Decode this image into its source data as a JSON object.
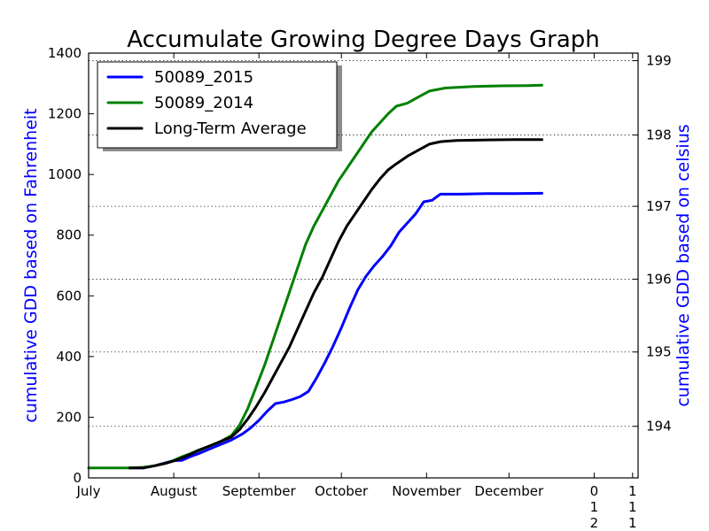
{
  "chart_data": {
    "type": "line",
    "title": "Accumulate Growing Degree Days Graph",
    "ylabel_left": "cumulative GDD based on Fahrenheit",
    "ylabel_right": "cumulative GDD based on celsius",
    "ylim_left": [
      0,
      1400
    ],
    "y_ticks_left": [
      "0",
      "200",
      "400",
      "600",
      "800",
      "1000",
      "1200",
      "1400"
    ],
    "ylim_right_tick_values": [
      194,
      195,
      196,
      197,
      198,
      199
    ],
    "y_ticks_right": [
      "194",
      "195",
      "196",
      "197",
      "198",
      "199"
    ],
    "right_tick_positions_left_units": [
      170,
      415,
      655,
      895,
      1130,
      1375
    ],
    "xlim_days": [
      0,
      200
    ],
    "x_ticks": [
      {
        "day": 0,
        "label": "July"
      },
      {
        "day": 31,
        "label": "August"
      },
      {
        "day": 62,
        "label": "September"
      },
      {
        "day": 92,
        "label": "October"
      },
      {
        "day": 123,
        "label": "November"
      },
      {
        "day": 153,
        "label": "December"
      }
    ],
    "x_overflow_labels": [
      {
        "day": 184,
        "lines": [
          "0",
          "1",
          "2"
        ]
      },
      {
        "day": 198,
        "lines": [
          "1",
          "1",
          "1"
        ]
      }
    ],
    "grid": "horizontal dotted at right-axis ticks",
    "legend_position": "top-left",
    "series": [
      {
        "name": "50089_2015",
        "color": "#0000ff",
        "points": [
          [
            15,
            33
          ],
          [
            20,
            33
          ],
          [
            24,
            40
          ],
          [
            28,
            50
          ],
          [
            31,
            57
          ],
          [
            34,
            58
          ],
          [
            37,
            70
          ],
          [
            40,
            80
          ],
          [
            44,
            95
          ],
          [
            48,
            110
          ],
          [
            52,
            125
          ],
          [
            56,
            145
          ],
          [
            59,
            165
          ],
          [
            62,
            190
          ],
          [
            65,
            220
          ],
          [
            68,
            245
          ],
          [
            71,
            250
          ],
          [
            74,
            258
          ],
          [
            77,
            268
          ],
          [
            80,
            285
          ],
          [
            83,
            330
          ],
          [
            86,
            380
          ],
          [
            89,
            435
          ],
          [
            92,
            495
          ],
          [
            95,
            560
          ],
          [
            98,
            620
          ],
          [
            101,
            665
          ],
          [
            104,
            700
          ],
          [
            107,
            730
          ],
          [
            110,
            765
          ],
          [
            113,
            810
          ],
          [
            116,
            840
          ],
          [
            119,
            870
          ],
          [
            122,
            910
          ],
          [
            125,
            915
          ],
          [
            128,
            935
          ],
          [
            135,
            935
          ],
          [
            145,
            937
          ],
          [
            155,
            937
          ],
          [
            165,
            938
          ]
        ]
      },
      {
        "name": "50089_2014",
        "color": "#008000",
        "points": [
          [
            0,
            33
          ],
          [
            10,
            33
          ],
          [
            15,
            33
          ],
          [
            20,
            35
          ],
          [
            24,
            40
          ],
          [
            28,
            48
          ],
          [
            31,
            58
          ],
          [
            34,
            70
          ],
          [
            37,
            80
          ],
          [
            40,
            92
          ],
          [
            44,
            105
          ],
          [
            48,
            120
          ],
          [
            52,
            140
          ],
          [
            55,
            175
          ],
          [
            58,
            230
          ],
          [
            61,
            300
          ],
          [
            64,
            370
          ],
          [
            67,
            450
          ],
          [
            70,
            530
          ],
          [
            73,
            610
          ],
          [
            76,
            690
          ],
          [
            79,
            770
          ],
          [
            82,
            830
          ],
          [
            85,
            880
          ],
          [
            88,
            930
          ],
          [
            91,
            980
          ],
          [
            94,
            1020
          ],
          [
            97,
            1060
          ],
          [
            100,
            1100
          ],
          [
            103,
            1140
          ],
          [
            106,
            1170
          ],
          [
            109,
            1200
          ],
          [
            112,
            1225
          ],
          [
            116,
            1235
          ],
          [
            120,
            1255
          ],
          [
            124,
            1275
          ],
          [
            130,
            1285
          ],
          [
            140,
            1290
          ],
          [
            150,
            1292
          ],
          [
            160,
            1293
          ],
          [
            165,
            1294
          ]
        ]
      },
      {
        "name": "Long-Term Average",
        "color": "#000000",
        "points": [
          [
            15,
            33
          ],
          [
            20,
            33
          ],
          [
            24,
            40
          ],
          [
            28,
            48
          ],
          [
            31,
            56
          ],
          [
            34,
            66
          ],
          [
            37,
            78
          ],
          [
            40,
            90
          ],
          [
            44,
            105
          ],
          [
            48,
            120
          ],
          [
            52,
            135
          ],
          [
            55,
            160
          ],
          [
            58,
            195
          ],
          [
            61,
            235
          ],
          [
            64,
            280
          ],
          [
            67,
            330
          ],
          [
            70,
            380
          ],
          [
            73,
            430
          ],
          [
            76,
            490
          ],
          [
            79,
            550
          ],
          [
            82,
            610
          ],
          [
            85,
            660
          ],
          [
            88,
            720
          ],
          [
            91,
            780
          ],
          [
            94,
            830
          ],
          [
            97,
            870
          ],
          [
            100,
            910
          ],
          [
            103,
            950
          ],
          [
            106,
            985
          ],
          [
            109,
            1015
          ],
          [
            112,
            1035
          ],
          [
            116,
            1060
          ],
          [
            120,
            1080
          ],
          [
            124,
            1100
          ],
          [
            128,
            1108
          ],
          [
            134,
            1112
          ],
          [
            145,
            1114
          ],
          [
            155,
            1115
          ],
          [
            165,
            1115
          ]
        ]
      }
    ]
  }
}
